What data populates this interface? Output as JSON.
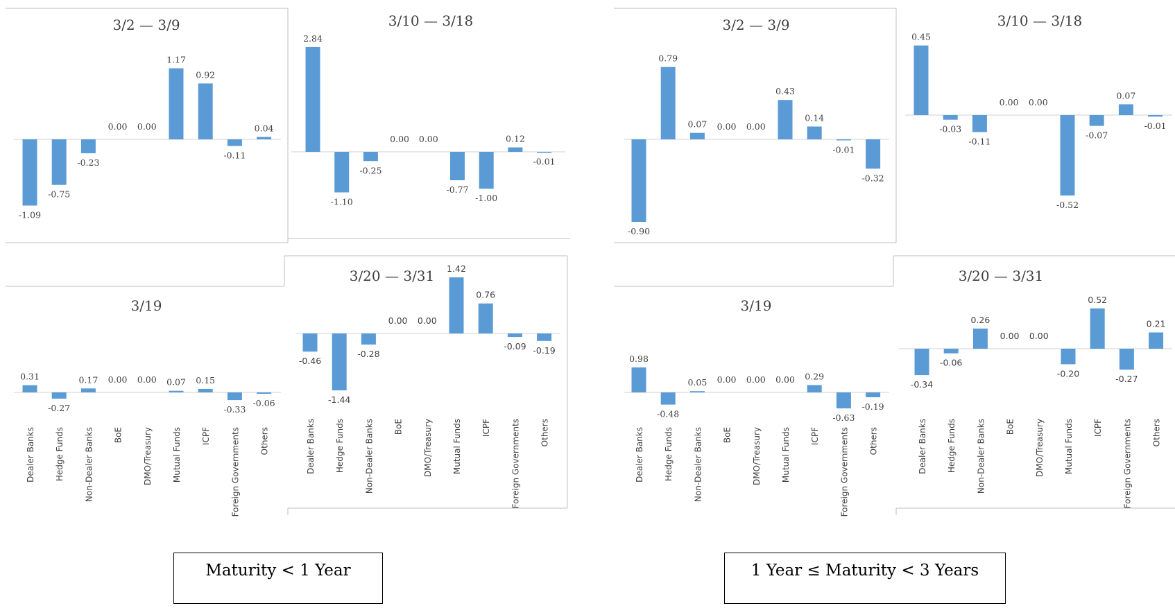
{
  "colors": {
    "bar": "#5b9bd5",
    "axis": "#d9d9d9",
    "frame": "#bfbfbf",
    "text": "#404040",
    "caption_border": "#000000"
  },
  "captions": {
    "left": "Maturity < 1 Year",
    "right": "1 Year ≤ Maturity < 3 Years"
  },
  "chart_data": [
    {
      "type": "bar",
      "group": "Maturity < 1 Year",
      "title": "3/2 — 3/9",
      "categories": [
        "Dealer Banks",
        "Hedge Funds",
        "Non-Dealer Banks",
        "BoE",
        "DMO/Treasury",
        "Mutual Funds",
        "ICPF",
        "Foreign Governments",
        "Others"
      ],
      "values": [
        -1.09,
        -0.75,
        -0.23,
        0.0,
        0.0,
        1.17,
        0.92,
        -0.11,
        0.04
      ],
      "data_labels": [
        "-1.09",
        "-0.75",
        "-0.23",
        "0.00",
        "0.00",
        "1.17",
        "0.92",
        "-0.11",
        "0.04"
      ],
      "show_categories": false
    },
    {
      "type": "bar",
      "group": "Maturity < 1 Year",
      "title": "3/10 — 3/18",
      "categories": [
        "Dealer Banks",
        "Hedge Funds",
        "Non-Dealer Banks",
        "BoE",
        "DMO/Treasury",
        "Mutual Funds",
        "ICPF",
        "Foreign Governments",
        "Others"
      ],
      "values": [
        2.84,
        -1.1,
        -0.25,
        0.0,
        0.0,
        -0.77,
        -1.0,
        0.12,
        -0.01
      ],
      "data_labels": [
        "2.84",
        "-1.10",
        "-0.25",
        "0.00",
        "0.00",
        "-0.77",
        "-1.00",
        "0.12",
        "-0.01"
      ],
      "show_categories": false
    },
    {
      "type": "bar",
      "group": "Maturity < 1 Year",
      "title": "3/19",
      "categories": [
        "Dealer Banks",
        "Hedge Funds",
        "Non-Dealer Banks",
        "BoE",
        "DMO/Treasury",
        "Mutual Funds",
        "ICPF",
        "Foreign Governments",
        "Others"
      ],
      "values": [
        0.31,
        -0.27,
        0.17,
        0.0,
        0.0,
        0.07,
        0.15,
        -0.33,
        -0.06
      ],
      "data_labels": [
        "0.31",
        "-0.27",
        "0.17",
        "0.00",
        "0.00",
        "0.07",
        "0.15",
        "-0.33",
        "-0.06"
      ],
      "show_categories": true
    },
    {
      "type": "bar",
      "group": "Maturity < 1 Year",
      "title": "3/20 — 3/31",
      "categories": [
        "Dealer Banks",
        "Hedge Funds",
        "Non-Dealer Banks",
        "BoE",
        "DMO/Treasury",
        "Mutual Funds",
        "ICPF",
        "Foreign Governments",
        "Others"
      ],
      "values": [
        -0.46,
        -1.44,
        -0.28,
        0.0,
        0.0,
        1.42,
        0.76,
        -0.09,
        -0.19
      ],
      "data_labels": [
        "-0.46",
        "-1.44",
        "-0.28",
        "0.00",
        "0.00",
        "1.42",
        "0.76",
        "-0.09",
        "-0.19"
      ],
      "show_categories": true
    },
    {
      "type": "bar",
      "group": "1 Year ≤ Maturity < 3 Years",
      "title": "3/2 — 3/9",
      "categories": [
        "Dealer Banks",
        "Hedge Funds",
        "Non-Dealer Banks",
        "BoE",
        "DMO/Treasury",
        "Mutual Funds",
        "ICPF",
        "Foreign Governments",
        "Others"
      ],
      "values": [
        -0.9,
        0.79,
        0.07,
        0.0,
        0.0,
        0.43,
        0.14,
        -0.01,
        -0.32
      ],
      "data_labels": [
        "-0.90",
        "0.79",
        "0.07",
        "0.00",
        "0.00",
        "0.43",
        "0.14",
        "-0.01",
        "-0.32"
      ],
      "show_categories": false
    },
    {
      "type": "bar",
      "group": "1 Year ≤ Maturity < 3 Years",
      "title": "3/10 — 3/18",
      "categories": [
        "Dealer Banks",
        "Hedge Funds",
        "Non-Dealer Banks",
        "BoE",
        "DMO/Treasury",
        "Mutual Funds",
        "ICPF",
        "Foreign Governments",
        "Others"
      ],
      "values": [
        0.45,
        -0.03,
        -0.11,
        0.0,
        0.0,
        -0.52,
        -0.07,
        0.07,
        -0.01
      ],
      "data_labels": [
        "0.45",
        "-0.03",
        "-0.11",
        "0.00",
        "0.00",
        "-0.52",
        "-0.07",
        "0.07",
        "-0.01"
      ],
      "show_categories": false
    },
    {
      "type": "bar",
      "group": "1 Year ≤ Maturity < 3 Years",
      "title": "3/19",
      "categories": [
        "Dealer Banks",
        "Hedge Funds",
        "Non-Dealer Banks",
        "BoE",
        "DMO/Treasury",
        "Mutual Funds",
        "ICPF",
        "Foreign Governments",
        "Others"
      ],
      "values": [
        0.98,
        -0.48,
        0.05,
        0.0,
        0.0,
        0.0,
        0.29,
        -0.63,
        -0.19
      ],
      "data_labels": [
        "0.98",
        "-0.48",
        "0.05",
        "0.00",
        "0.00",
        "0.00",
        "0.29",
        "-0.63",
        "-0.19"
      ],
      "show_categories": true
    },
    {
      "type": "bar",
      "group": "1 Year ≤ Maturity < 3 Years",
      "title": "3/20 — 3/31",
      "categories": [
        "Dealer Banks",
        "Hedge Funds",
        "Non-Dealer Banks",
        "BoE",
        "DMO/Treasury",
        "Mutual Funds",
        "ICPF",
        "Foreign Governments",
        "Others"
      ],
      "values": [
        -0.34,
        -0.06,
        0.26,
        0.0,
        0.0,
        -0.2,
        0.52,
        -0.27,
        0.21
      ],
      "data_labels": [
        "-0.34",
        "-0.06",
        "0.26",
        "0.00",
        "0.00",
        "-0.20",
        "0.52",
        "-0.27",
        "0.21"
      ],
      "show_categories": true
    }
  ]
}
